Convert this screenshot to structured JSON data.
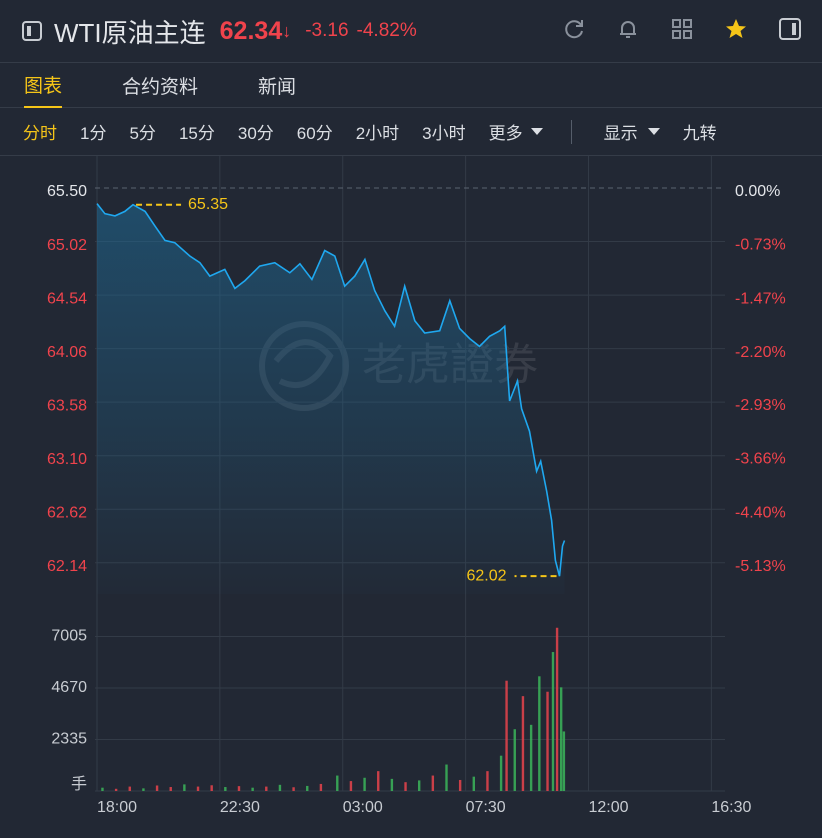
{
  "header": {
    "title": "WTI原油主连",
    "price": "62.34",
    "arrow": "↓",
    "change": "-3.16",
    "change_pct": "-4.82%"
  },
  "tabs": [
    "图表",
    "合约资料",
    "新闻"
  ],
  "periods": [
    "分时",
    "1分",
    "5分",
    "15分",
    "30分",
    "60分",
    "2小时",
    "3小时",
    "更多"
  ],
  "options": [
    "显示",
    "九转"
  ],
  "watermark": "老虎證券",
  "chart_data": {
    "type": "line",
    "series": [
      {
        "color": "#1fa8f0",
        "x": [
          0,
          0.29,
          0.66,
          1.02,
          1.32,
          1.76,
          2.12,
          2.49,
          2.85,
          3.4,
          3.77,
          4.13,
          4.68,
          5.05,
          5.42,
          5.96,
          6.51,
          7.06,
          7.43,
          7.87,
          8.34,
          8.71,
          9.07,
          9.44,
          9.81,
          10.17,
          10.54,
          10.9,
          11.27,
          11.64,
          12.0,
          12.55,
          12.92,
          13.28,
          13.65,
          14.01,
          14.38,
          14.75,
          14.93,
          15.11,
          15.4,
          15.55,
          15.84,
          16.1,
          16.25,
          16.47,
          16.65,
          16.79,
          16.94,
          17.05,
          17.12
        ],
        "values": [
          65.36,
          65.27,
          65.25,
          65.29,
          65.35,
          65.29,
          65.16,
          65.03,
          65.01,
          64.89,
          64.83,
          64.71,
          64.77,
          64.6,
          64.67,
          64.8,
          64.83,
          64.74,
          64.82,
          64.68,
          64.94,
          64.89,
          64.62,
          64.71,
          64.86,
          64.58,
          64.4,
          64.26,
          64.62,
          64.31,
          64.2,
          64.22,
          64.49,
          64.24,
          64.15,
          64.08,
          64.17,
          64.22,
          64.26,
          63.59,
          63.77,
          63.52,
          63.32,
          62.96,
          63.05,
          62.78,
          62.52,
          62.16,
          62.02,
          62.29,
          62.34
        ]
      }
    ],
    "annotations": [
      {
        "x": 1.32,
        "y": 65.35,
        "color": "#f5c518"
      },
      {
        "x": 16.94,
        "y": 62.02,
        "color": "#f5c518"
      }
    ],
    "xlim": [
      0,
      23
    ],
    "xticks": [
      {
        "value": 0,
        "label": "18:00"
      },
      {
        "value": 4.5,
        "label": "22:30"
      },
      {
        "value": 9,
        "label": "03:00"
      },
      {
        "value": 13.5,
        "label": "07:30"
      },
      {
        "value": 18,
        "label": "12:00"
      },
      {
        "value": 22.5,
        "label": "16:30"
      }
    ],
    "ylim": [
      61.86,
      65.5
    ],
    "yticks": [
      {
        "value": 65.5,
        "label": "65.50"
      },
      65.02,
      64.54,
      64.06,
      63.58,
      {
        "value": 63.1,
        "label": "63.10"
      },
      62.62,
      62.14
    ],
    "y2lim": [
      -5.56,
      0
    ],
    "y2ticks": [
      {
        "value": 0,
        "label": "0.00%"
      },
      {
        "value": -0.73,
        "label": "-0.73%"
      },
      {
        "value": -1.47,
        "label": "-1.47%"
      },
      {
        "value": -2.2,
        "label": "-2.20%"
      },
      {
        "value": -2.93,
        "label": "-2.93%"
      },
      {
        "value": -3.66,
        "label": "-3.66%"
      },
      {
        "value": -4.4,
        "label": "-4.40%"
      },
      {
        "value": -5.13,
        "label": "-5.13%"
      }
    ],
    "grid": true,
    "volume": {
      "unit": "手",
      "ylim": [
        0,
        8160
      ],
      "yticks": [
        2335,
        4670,
        7005
      ],
      "x": [
        0.2,
        0.7,
        1.2,
        1.7,
        2.2,
        2.7,
        3.2,
        3.7,
        4.2,
        4.7,
        5.2,
        5.7,
        6.2,
        6.7,
        7.2,
        7.7,
        8.2,
        8.8,
        9.3,
        9.8,
        10.3,
        10.8,
        11.3,
        11.8,
        12.3,
        12.8,
        13.3,
        13.8,
        14.3,
        14.8,
        15.0,
        15.3,
        15.6,
        15.9,
        16.2,
        16.5,
        16.7,
        16.85,
        17.0,
        17.1
      ],
      "values": [
        150,
        100,
        200,
        120,
        250,
        180,
        300,
        200,
        260,
        180,
        220,
        150,
        200,
        280,
        170,
        230,
        320,
        700,
        450,
        600,
        900,
        550,
        400,
        480,
        700,
        1200,
        500,
        650,
        900,
        1600,
        5000,
        2800,
        4300,
        3000,
        5200,
        4500,
        6300,
        7400,
        4700,
        2700
      ],
      "colors": [
        "#3bb55a",
        "#e8434c",
        "#e8434c",
        "#3bb55a",
        "#e8434c",
        "#e8434c",
        "#3bb55a",
        "#e8434c",
        "#e8434c",
        "#3bb55a",
        "#e8434c",
        "#3bb55a",
        "#e8434c",
        "#3bb55a",
        "#e8434c",
        "#3bb55a",
        "#e8434c",
        "#3bb55a",
        "#e8434c",
        "#3bb55a",
        "#e8434c",
        "#3bb55a",
        "#e8434c",
        "#3bb55a",
        "#e8434c",
        "#3bb55a",
        "#e8434c",
        "#3bb55a",
        "#e8434c",
        "#3bb55a",
        "#e8434c",
        "#3bb55a",
        "#e8434c",
        "#3bb55a",
        "#3bb55a",
        "#e8434c",
        "#3bb55a",
        "#e8434c",
        "#3bb55a",
        "#3bb55a"
      ]
    }
  }
}
